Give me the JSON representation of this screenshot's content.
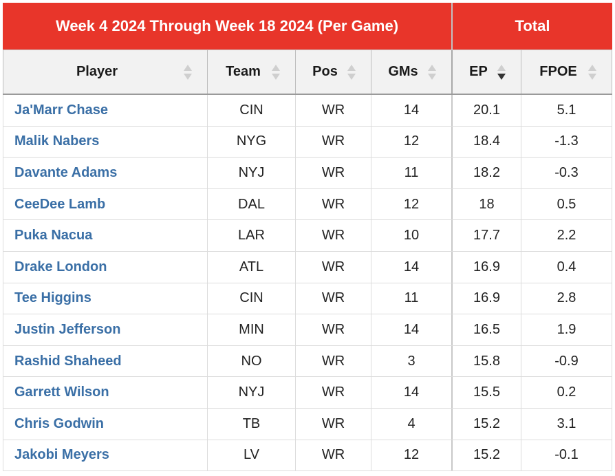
{
  "header": {
    "group_main": "Week 4 2024 Through Week 18 2024 (Per Game)",
    "group_total": "Total"
  },
  "columns": {
    "player": "Player",
    "team": "Team",
    "pos": "Pos",
    "gms": "GMs",
    "ep": "EP",
    "fpoe": "FPOE"
  },
  "sort": {
    "column": "EP",
    "direction": "descending"
  },
  "colors": {
    "header_red": "#e8352a",
    "player_link": "#3a6fa6"
  },
  "rows": [
    {
      "player": "Ja'Marr Chase",
      "team": "CIN",
      "pos": "WR",
      "gms": "14",
      "ep": "20.1",
      "fpoe": "5.1"
    },
    {
      "player": "Malik Nabers",
      "team": "NYG",
      "pos": "WR",
      "gms": "12",
      "ep": "18.4",
      "fpoe": "-1.3"
    },
    {
      "player": "Davante Adams",
      "team": "NYJ",
      "pos": "WR",
      "gms": "11",
      "ep": "18.2",
      "fpoe": "-0.3"
    },
    {
      "player": "CeeDee Lamb",
      "team": "DAL",
      "pos": "WR",
      "gms": "12",
      "ep": "18",
      "fpoe": "0.5"
    },
    {
      "player": "Puka Nacua",
      "team": "LAR",
      "pos": "WR",
      "gms": "10",
      "ep": "17.7",
      "fpoe": "2.2"
    },
    {
      "player": "Drake London",
      "team": "ATL",
      "pos": "WR",
      "gms": "14",
      "ep": "16.9",
      "fpoe": "0.4"
    },
    {
      "player": "Tee Higgins",
      "team": "CIN",
      "pos": "WR",
      "gms": "11",
      "ep": "16.9",
      "fpoe": "2.8"
    },
    {
      "player": "Justin Jefferson",
      "team": "MIN",
      "pos": "WR",
      "gms": "14",
      "ep": "16.5",
      "fpoe": "1.9"
    },
    {
      "player": "Rashid Shaheed",
      "team": "NO",
      "pos": "WR",
      "gms": "3",
      "ep": "15.8",
      "fpoe": "-0.9"
    },
    {
      "player": "Garrett Wilson",
      "team": "NYJ",
      "pos": "WR",
      "gms": "14",
      "ep": "15.5",
      "fpoe": "0.2"
    },
    {
      "player": "Chris Godwin",
      "team": "TB",
      "pos": "WR",
      "gms": "4",
      "ep": "15.2",
      "fpoe": "3.1"
    },
    {
      "player": "Jakobi Meyers",
      "team": "LV",
      "pos": "WR",
      "gms": "12",
      "ep": "15.2",
      "fpoe": "-0.1"
    }
  ]
}
